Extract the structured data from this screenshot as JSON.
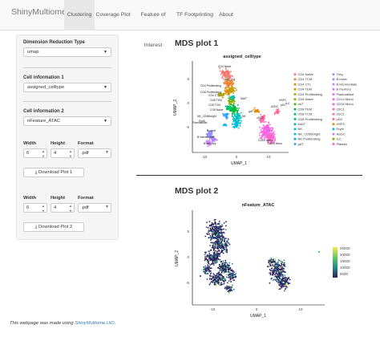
{
  "app": {
    "brand": "ShinyMultiome.UiO"
  },
  "nav": {
    "tabs": [
      {
        "label": "Clustering",
        "active": true
      },
      {
        "label": "Coverage Plot",
        "active": false
      },
      {
        "label": "Feature of Interest",
        "active": false
      },
      {
        "label": "TF Footprinting",
        "active": false
      },
      {
        "label": "About",
        "active": false
      }
    ]
  },
  "sidebar": {
    "reduction": {
      "label": "Dimension Reduction Type",
      "value": "umap"
    },
    "cell_info_1": {
      "label": "Cell information 1",
      "value": "assigned_celltype"
    },
    "cell_info_2": {
      "label": "Cell information 2",
      "value": "nFeature_ATAC"
    },
    "plot1": {
      "width_label": "Width",
      "height_label": "Height",
      "format_label": "Format",
      "width": "6",
      "height": "4",
      "format": ".pdf",
      "download_label": "Download Plot 1"
    },
    "plot2": {
      "width_label": "Width",
      "height_label": "Height",
      "format_label": "Format",
      "width": "6",
      "height": "4",
      "format": ".pdf",
      "download_label": "Download Plot 2"
    }
  },
  "main": {
    "plot1_heading": "MDS plot 1",
    "plot2_heading": "MDS plot 2"
  },
  "footer": {
    "text": "This webpage was made using ",
    "link": "ShinyMultiome.UiO",
    "suffix": "."
  },
  "chart_data": [
    {
      "type": "scatter",
      "title": "assigned_celltype",
      "xlabel": "UMAP_1",
      "ylabel": "UMAP_2",
      "xticks": [
        "-10",
        "0",
        "10"
      ],
      "yticks": [
        "-5",
        "0",
        "5"
      ],
      "cluster_labels": [
        "CD4 Naive",
        "CD4 TCM",
        "CD4 Proliferating",
        "CD8 Proliferating",
        "CD4 CTL",
        "CD8 TEM",
        "CD8 TCM",
        "CD8 Naive",
        "NK_CD56bright",
        "Eryth",
        "NK",
        "Plasmablast",
        "B naive",
        "B intermediate",
        "B memory",
        "MAIT",
        "cDC2",
        "gdT",
        "CD16 Mono",
        "CD14 Mono",
        "HSPC",
        "ASDC",
        "pDC",
        "ILC"
      ],
      "legend_position": "right",
      "series": [
        {
          "name": "CD4 Naive",
          "color": "#F8766D"
        },
        {
          "name": "CD4 TCM",
          "color": "#EB8335"
        },
        {
          "name": "CD4 CTL",
          "color": "#DA8F00"
        },
        {
          "name": "CD4 TEM",
          "color": "#C49A00"
        },
        {
          "name": "CD4 Proliferating",
          "color": "#A9A400"
        },
        {
          "name": "CD8 Naive",
          "color": "#86AC00"
        },
        {
          "name": "dnT",
          "color": "#53B400"
        },
        {
          "name": "CD8 TEM",
          "color": "#00BA38"
        },
        {
          "name": "CD8 TCM",
          "color": "#00BE67"
        },
        {
          "name": "CD8 Proliferating",
          "color": "#00C08B"
        },
        {
          "name": "MAIT",
          "color": "#00C1AA"
        },
        {
          "name": "NK",
          "color": "#00BFC4"
        },
        {
          "name": "NK_CD56bright",
          "color": "#00BADE"
        },
        {
          "name": "NK Proliferating",
          "color": "#00B0F6"
        },
        {
          "name": "gdT",
          "color": "#35A2FF"
        },
        {
          "name": "Treg",
          "color": "#7997FF"
        },
        {
          "name": "B naive",
          "color": "#9590FF"
        },
        {
          "name": "B intermediate",
          "color": "#B983FF"
        },
        {
          "name": "B memory",
          "color": "#D078FF"
        },
        {
          "name": "Plasmablast",
          "color": "#E76BF3"
        },
        {
          "name": "CD14 Mono",
          "color": "#F564E3"
        },
        {
          "name": "CD16 Mono",
          "color": "#FD61D1"
        },
        {
          "name": "cDC1",
          "color": "#FF62BC"
        },
        {
          "name": "cDC2",
          "color": "#FF67A4"
        },
        {
          "name": "pDC",
          "color": "#FF6C91"
        },
        {
          "name": "HSPC",
          "color": "#E58700"
        },
        {
          "name": "Eryth",
          "color": "#00B4F0"
        },
        {
          "name": "ASDC",
          "color": "#C77CFF"
        },
        {
          "name": "ILC",
          "color": "#7CAE00"
        },
        {
          "name": "Platelet",
          "color": "#FF61C3"
        }
      ]
    },
    {
      "type": "scatter",
      "title": "nFeature_ATAC",
      "xlabel": "UMAP_1",
      "ylabel": "UMAP_2",
      "xticks": [
        "-10",
        "0",
        "10"
      ],
      "yticks": [
        "-5",
        "0",
        "5"
      ],
      "colorbar": {
        "ticks": [
          "25000",
          "20000",
          "15000",
          "10000",
          "5000"
        ],
        "low_color": "#2d1e5a",
        "high_color": "#f5ec4a"
      }
    }
  ]
}
